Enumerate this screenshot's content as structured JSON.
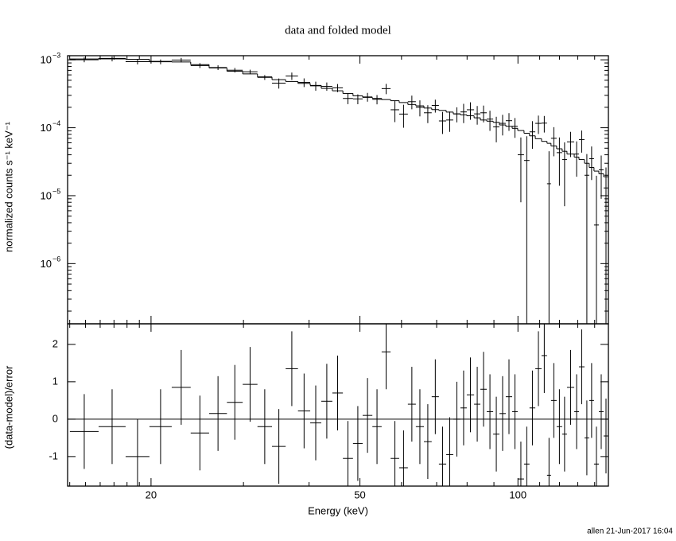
{
  "chart_data": {
    "type": "spectrum",
    "title": "data and folded model",
    "xlabel": "Energy (keV)",
    "footer": "allen 21-Jun-2017 16:04",
    "xscale": "log",
    "xlim": [
      13.87,
      148.7
    ],
    "xticks": [
      20,
      50,
      100
    ],
    "xminorticks": [
      14,
      15,
      16,
      17,
      18,
      19,
      30,
      40,
      60,
      70,
      80,
      90,
      110,
      120,
      130,
      140
    ],
    "bins": [
      14.01,
      15.89,
      17.89,
      19.86,
      21.9,
      23.8,
      25.8,
      27.9,
      29.9,
      31.9,
      34.0,
      36.1,
      38.1,
      40.2,
      42.2,
      44.3,
      46.4,
      48.5,
      50.6,
      52.8,
      55.0,
      57.2,
      59.4,
      61.7,
      63.9,
      66.2,
      68.5,
      70.7,
      73.0,
      75.3,
      77.7,
      79.9,
      82.5,
      84.8,
      87.2,
      89.7,
      92.2,
      94.8,
      97.5,
      99.9,
      102.7,
      105.2,
      107.9,
      110.9,
      113.6,
      115.6,
      118.5,
      121.4,
      124.0,
      128.0,
      130.7,
      133.9,
      136.7,
      139.6,
      142.6,
      145.6,
      148.7
    ],
    "upper": {
      "ylabel": "normalized counts s⁻¹ keV⁻¹",
      "yscale": "log",
      "ylim": [
        1.3e-07,
        0.00115
      ],
      "yticks": [
        {
          "value": 1e-06,
          "label": "10",
          "exponent": "−6"
        },
        {
          "value": 1e-05,
          "label": "10",
          "exponent": "−5"
        },
        {
          "value": 0.0001,
          "label": "10",
          "exponent": "−4"
        },
        {
          "value": 0.001,
          "label": "10",
          "exponent": "−3"
        }
      ],
      "yminorticks": [
        2e-07,
        3e-07,
        4e-07,
        5e-07,
        6e-07,
        7e-07,
        8e-07,
        9e-07,
        2e-06,
        3e-06,
        4e-06,
        5e-06,
        6e-06,
        7e-06,
        8e-06,
        9e-06,
        2e-05,
        3e-05,
        4e-05,
        5e-05,
        6e-05,
        7e-05,
        8e-05,
        9e-05,
        0.0002,
        0.0003,
        0.0004,
        0.0005,
        0.0006,
        0.0007,
        0.0008,
        0.0009
      ],
      "color": "#000000",
      "data": [
        0.001003,
        0.001033,
        0.000938,
        0.000935,
        0.000993,
        0.000825,
        0.000769,
        0.000704,
        0.000666,
        0.000551,
        0.000454,
        0.000577,
        0.000465,
        0.000414,
        0.000407,
        0.000387,
        0.00027,
        0.000266,
        0.000284,
        0.000262,
        0.000377,
        0.000184,
        0.000159,
        0.000242,
        0.0002,
        0.000166,
        0.000213,
        0.000126,
        0.00013,
        0.00016,
        0.000171,
        0.000184,
        0.00016,
        0.000166,
        0.000134,
        0.000103,
        0.000116,
        0.000127,
        0.000105,
        4e-05,
        3.3e-05,
        8.7e-05,
        0.000116,
        0.000117,
        1.5e-05,
        7e-05,
        4.3e-05,
        3.4e-05,
        6.2e-05,
        4.1e-05,
        6.7e-05,
        2e-05,
        3.5e-05,
        3.7e-06,
        2.4e-05,
        1.3e-05
      ],
      "errors": [
        8.2e-05,
        8.4e-05,
        8.2e-05,
        7.6e-05,
        7.4e-05,
        6.8e-05,
        6.1e-05,
        5.4e-05,
        5e-05,
        4.5e-05,
        7.7e-05,
        7.2e-05,
        6.8e-05,
        6.3e-05,
        5.7e-05,
        5.3e-05,
        4.8e-05,
        4.4e-05,
        4.2e-05,
        4.1e-05,
        6.5e-05,
        6.3e-05,
        5.9e-05,
        5.5e-05,
        5.3e-05,
        4.9e-05,
        4.6e-05,
        4.5e-05,
        4.3e-05,
        4e-05,
        5.4e-05,
        5.3e-05,
        4.9e-05,
        4.6e-05,
        4.4e-05,
        4.2e-05,
        3.9e-05,
        3.7e-05,
        3.4e-05,
        3.2e-05,
        4.2e-05,
        3.8e-05,
        3.5e-05,
        3.2e-05,
        3e-05,
        3.2e-05,
        2.9e-05,
        2.7e-05,
        2.5e-05,
        2.2e-05,
        2.4e-05,
        2.1e-05,
        1.8e-05,
        1.6e-05,
        1.5e-05,
        1.3e-05
      ],
      "model": [
        0.00103,
        0.00105,
        0.00102,
        0.00095,
        0.00093,
        0.00085,
        0.00076,
        0.00068,
        0.00062,
        0.00056,
        0.00051,
        0.00048,
        0.00045,
        0.00042,
        0.00038,
        0.00035,
        0.00032,
        0.000295,
        0.00028,
        0.00027,
        0.00026,
        0.00025,
        0.000235,
        0.00022,
        0.00021,
        0.000195,
        0.000185,
        0.00018,
        0.00017,
        0.00016,
        0.000155,
        0.00015,
        0.00014,
        0.00013,
        0.000125,
        0.00012,
        0.00011,
        0.000105,
        9.8e-05,
        9.1e-05,
        8.3e-05,
        7.6e-05,
        6.9e-05,
        6.3e-05,
        5.9e-05,
        5.4e-05,
        4.9e-05,
        4.5e-05,
        4.1e-05,
        3.7e-05,
        3.4e-05,
        3e-05,
        2.6e-05,
        2.3e-05,
        2.1e-05,
        1.9e-05
      ]
    },
    "lower": {
      "ylabel": "(data-model)/error",
      "ylim": [
        -1.79,
        2.55
      ],
      "yticks": [
        -1,
        0,
        1,
        2
      ],
      "color": "#000000",
      "reference": {
        "value": 0,
        "color": "#33cc33"
      },
      "residual_error": 1,
      "residuals": [
        -0.33,
        -0.2,
        -1.0,
        -0.2,
        0.85,
        -0.37,
        0.15,
        0.45,
        0.93,
        -0.2,
        -0.73,
        1.35,
        0.22,
        -0.1,
        0.48,
        0.7,
        -1.05,
        -0.65,
        0.1,
        -0.2,
        1.8,
        -1.05,
        -1.3,
        0.4,
        -0.2,
        -0.6,
        0.6,
        -1.2,
        -0.95,
        0,
        0.3,
        0.65,
        0.4,
        0.8,
        0.2,
        -0.4,
        0.15,
        0.6,
        0.2,
        -1.6,
        -1.2,
        0.3,
        1.35,
        1.7,
        -1.5,
        0.5,
        -0.2,
        -0.4,
        0.85,
        0.2,
        1.4,
        -0.5,
        0.5,
        -1.2,
        0.2,
        -0.45
      ]
    }
  }
}
